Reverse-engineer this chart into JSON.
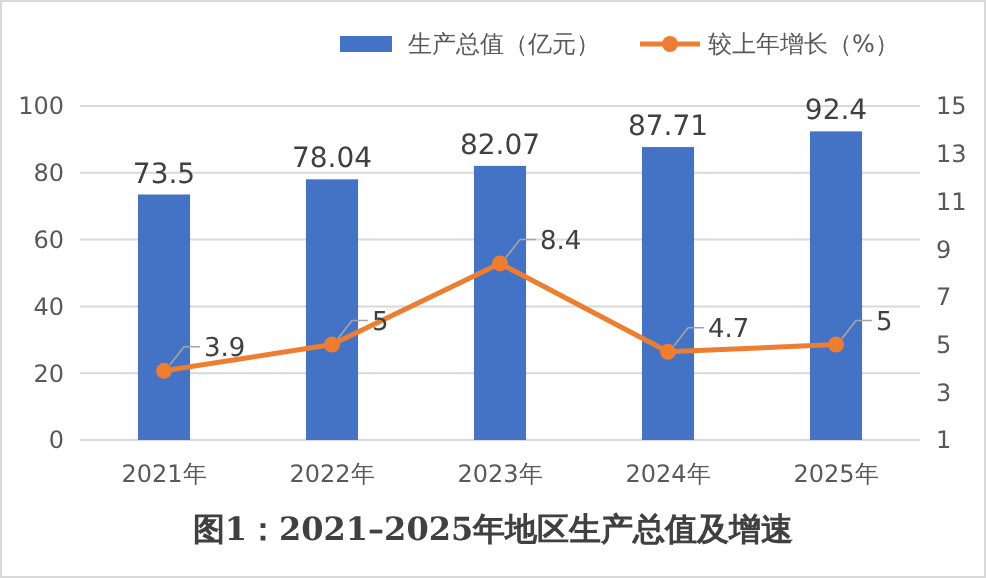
{
  "chart_data": {
    "type": "bar",
    "title": "图1：2021–2025年地区生产总值及增速",
    "categories": [
      "2021年",
      "2022年",
      "2023年",
      "2024年",
      "2025年"
    ],
    "series": [
      {
        "name": "生产总值（亿元）",
        "color": "#4472c4",
        "values": [
          73.5,
          78.04,
          82.07,
          87.71,
          92.4
        ]
      },
      {
        "name": "较上年增长（%）",
        "type": "line",
        "axis": "y2",
        "color": "#ed7d31",
        "marker": "circle",
        "values": [
          3.9,
          5,
          8.4,
          4.7,
          5
        ]
      }
    ],
    "ylim": [
      0,
      100
    ],
    "yticks": [
      0,
      20,
      40,
      60,
      80,
      100
    ],
    "y2lim": [
      1,
      15
    ],
    "y2ticks": [
      1,
      3,
      5,
      7,
      9,
      11,
      13,
      15
    ],
    "grid": "y",
    "legend": "top right",
    "data_labels": true
  }
}
